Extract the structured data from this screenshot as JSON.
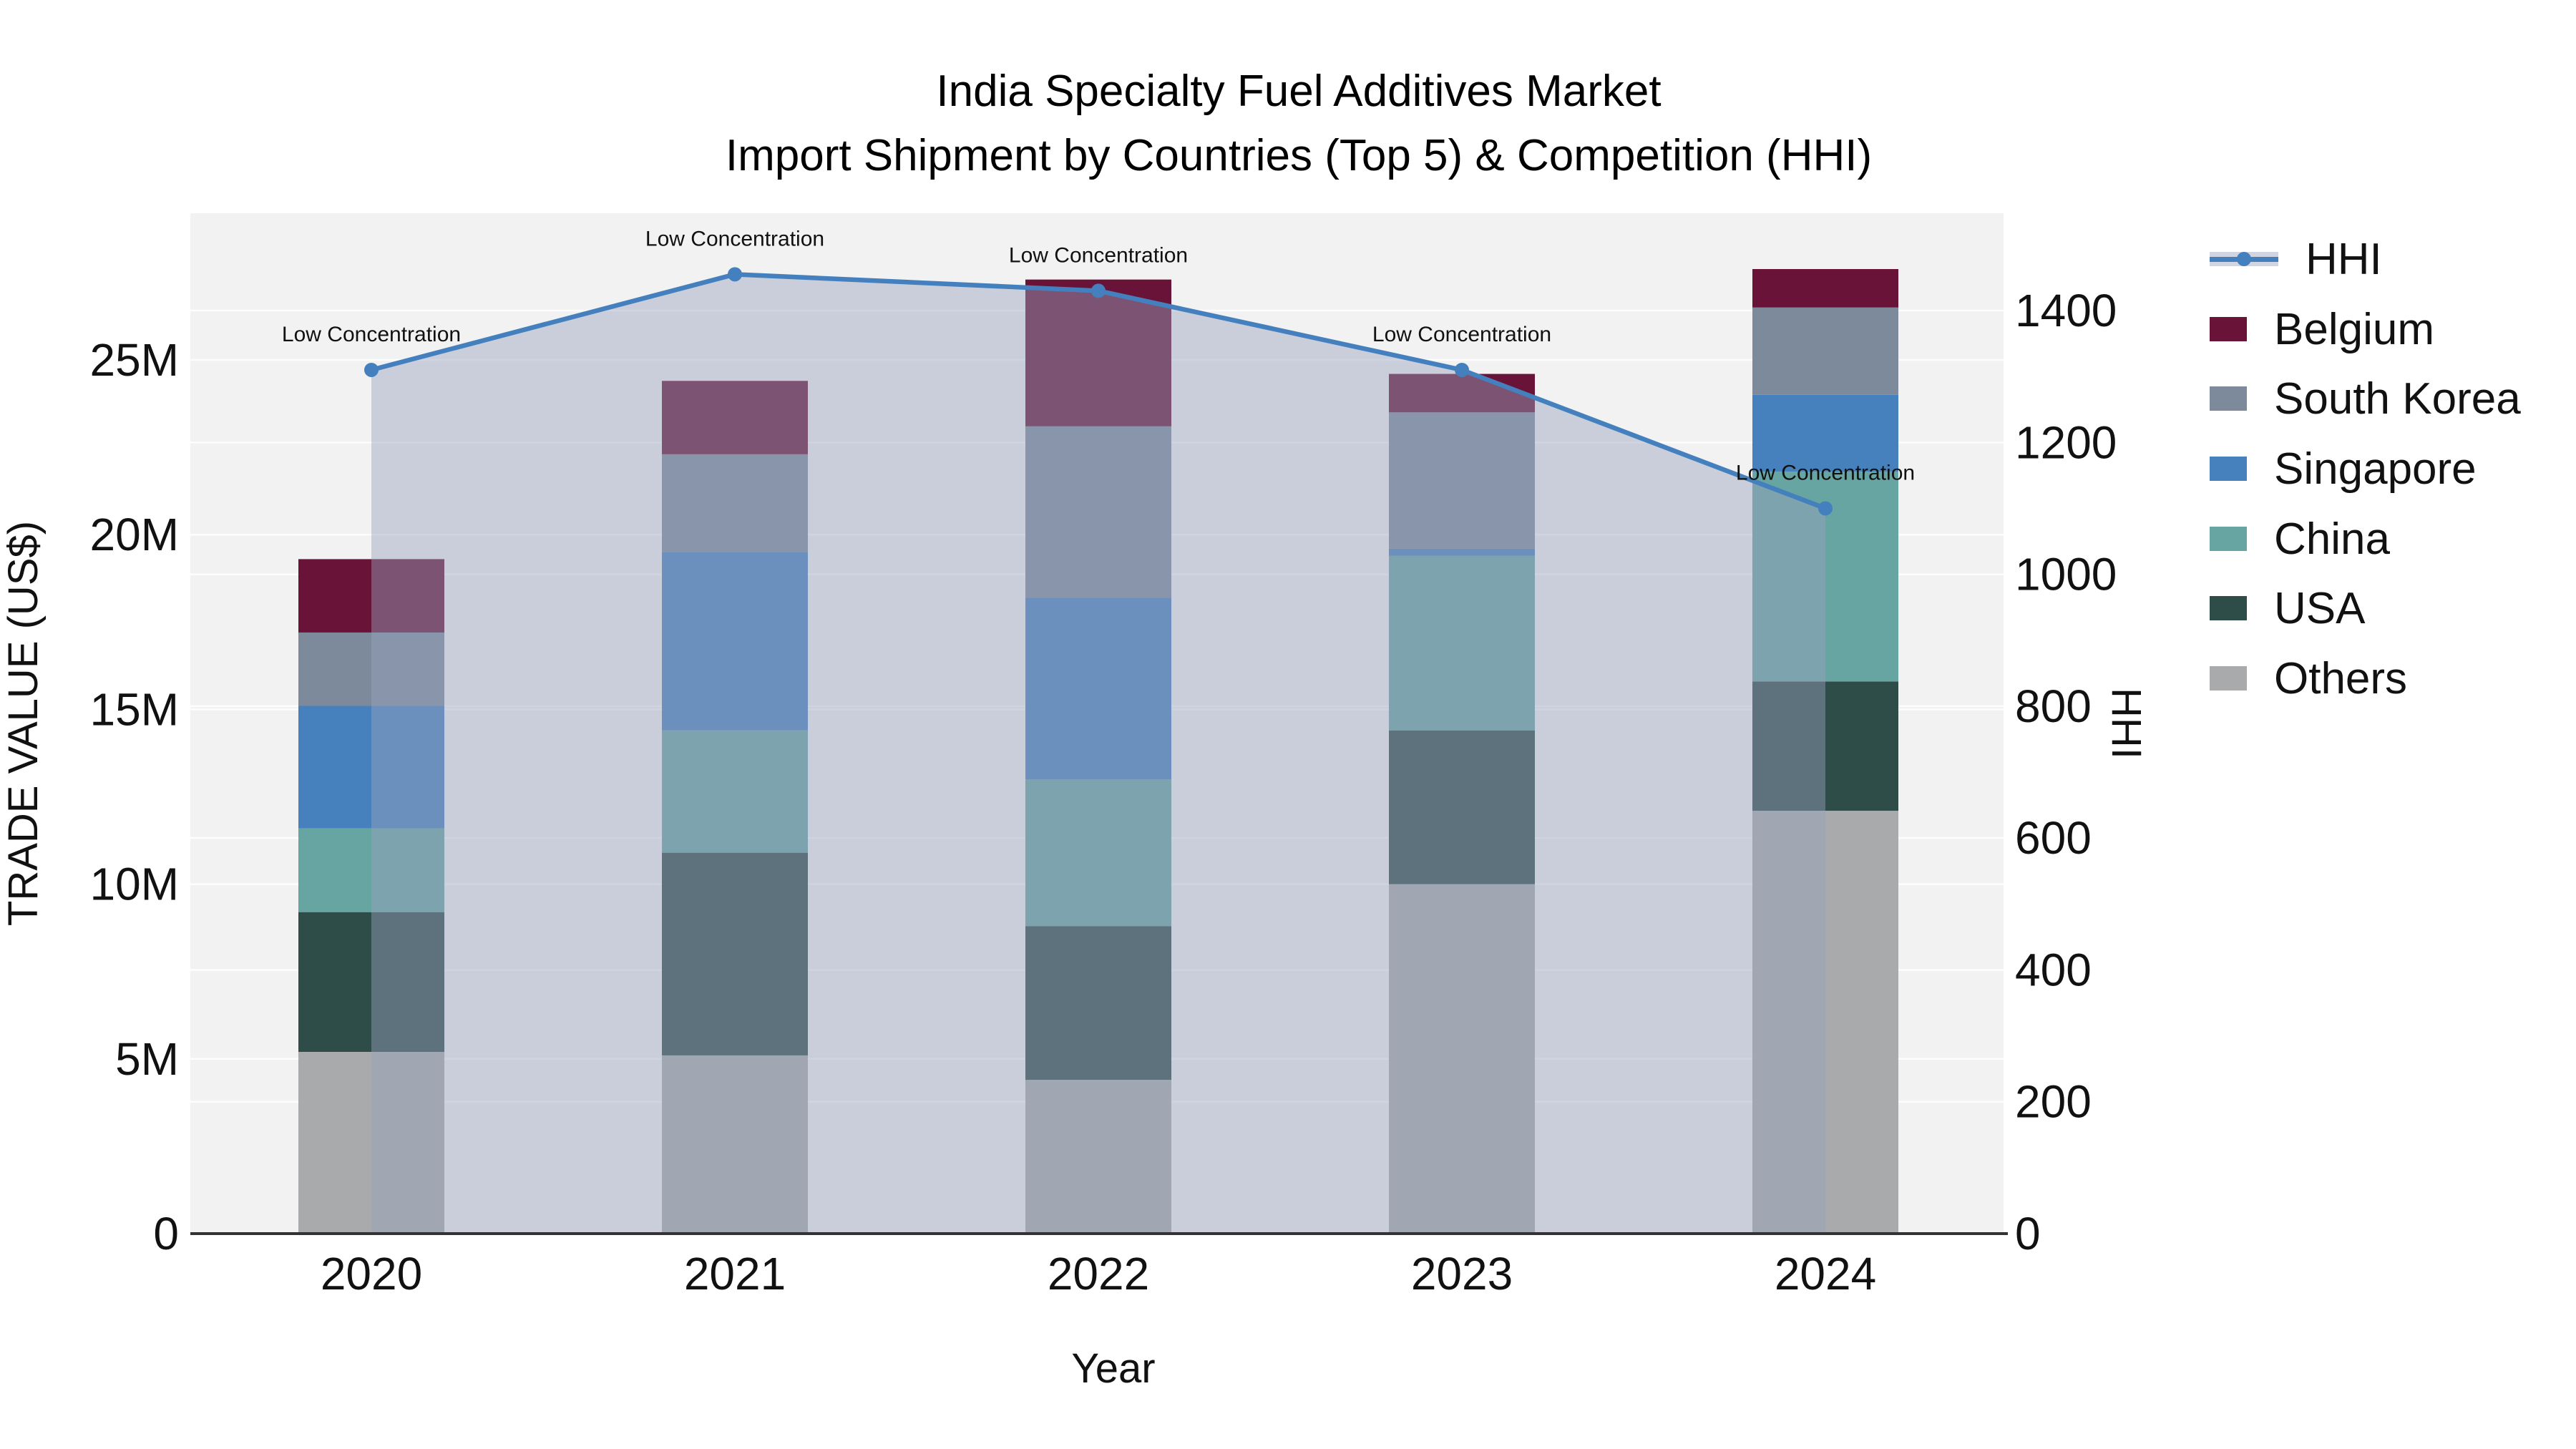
{
  "title": {
    "line1": "India Specialty Fuel Additives Market",
    "line2": "Import Shipment by Countries (Top 5) & Competition (HHI)"
  },
  "legend": {
    "items": [
      {
        "label": "HHI",
        "kind": "line",
        "color": "#4480BE"
      },
      {
        "label": "Belgium",
        "kind": "bar",
        "color": "#681337"
      },
      {
        "label": "South Korea",
        "kind": "bar",
        "color": "#7C8A9B"
      },
      {
        "label": "Singapore",
        "kind": "bar",
        "color": "#4781BD"
      },
      {
        "label": "China",
        "kind": "bar",
        "color": "#67A5A3"
      },
      {
        "label": "USA",
        "kind": "bar",
        "color": "#2E4C48"
      },
      {
        "label": "Others",
        "kind": "bar",
        "color": "#A9AAAB"
      }
    ]
  },
  "axes": {
    "x": {
      "title": "Year",
      "categories": [
        "2020",
        "2021",
        "2022",
        "2023",
        "2024"
      ]
    },
    "y_left": {
      "title": "TRADE VALUE (US$)",
      "tick_labels": [
        "0",
        "5M",
        "10M",
        "15M",
        "20M",
        "25M"
      ],
      "tick_values": [
        0,
        5,
        10,
        15,
        20,
        25
      ]
    },
    "y_right": {
      "title": "HHI",
      "tick_labels": [
        "0",
        "200",
        "400",
        "600",
        "800",
        "1000",
        "1200",
        "1400"
      ],
      "tick_values": [
        0,
        200,
        400,
        600,
        800,
        1000,
        1200,
        1400
      ]
    }
  },
  "chart_data": {
    "type": "bar+line",
    "stacked": true,
    "categories": [
      "2020",
      "2021",
      "2022",
      "2023",
      "2024"
    ],
    "bar_value_unit": "M US$ (trade value, left axis)",
    "series": [
      {
        "name": "Others",
        "kind": "bar",
        "color": "#A9AAAB",
        "values": [
          5.2,
          5.1,
          4.4,
          10.0,
          12.1
        ]
      },
      {
        "name": "USA",
        "kind": "bar",
        "color": "#2E4C48",
        "values": [
          4.0,
          5.8,
          4.4,
          4.4,
          3.7
        ]
      },
      {
        "name": "China",
        "kind": "bar",
        "color": "#67A5A3",
        "values": [
          2.4,
          3.5,
          4.2,
          5.0,
          6.0
        ]
      },
      {
        "name": "Singapore",
        "kind": "bar",
        "color": "#4781BD",
        "values": [
          3.5,
          5.1,
          5.2,
          0.2,
          2.2
        ]
      },
      {
        "name": "South Korea",
        "kind": "bar",
        "color": "#7C8A9B",
        "values": [
          2.1,
          2.8,
          4.9,
          3.9,
          2.5
        ]
      },
      {
        "name": "Belgium",
        "kind": "bar",
        "color": "#681337",
        "values": [
          2.1,
          2.1,
          4.2,
          1.1,
          1.1
        ]
      }
    ],
    "line_series": {
      "name": "HHI",
      "kind": "line",
      "axis": "right",
      "color": "#4480BE",
      "area_fill": "rgba(150,162,188,0.45)",
      "values": [
        1310,
        1455,
        1430,
        1310,
        1100
      ]
    },
    "annotations": [
      {
        "category": "2020",
        "text": "Low Concentration"
      },
      {
        "category": "2021",
        "text": "Low Concentration"
      },
      {
        "category": "2022",
        "text": "Low Concentration"
      },
      {
        "category": "2023",
        "text": "Low Concentration"
      },
      {
        "category": "2024",
        "text": "Low Concentration"
      }
    ],
    "ylim": [
      0,
      29.2
    ],
    "y2lim": [
      0,
      1550
    ],
    "grid": true,
    "legend_position": "right",
    "plot_background": "#F2F2F2",
    "gridline_color": "#FFFFFF"
  }
}
